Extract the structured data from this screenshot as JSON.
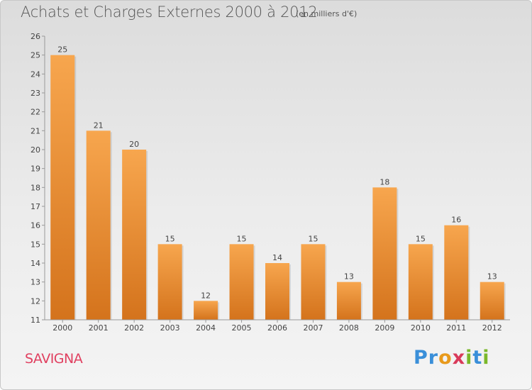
{
  "header": {
    "title": "Achats et Charges Externes 2000 à 2012",
    "subtitle": "(en milliers d'€)"
  },
  "footer": {
    "commune": "SAVIGNA",
    "logo_letters": [
      "P",
      "r",
      "o",
      "x",
      "i",
      "t",
      "i"
    ],
    "logo_colors": [
      "#3a8fd9",
      "#3a8fd9",
      "#e89a1c",
      "#d93a5a",
      "#7ab82a",
      "#3a8fd9",
      "#7ab82a"
    ]
  },
  "chart_data": {
    "type": "bar",
    "title": "Achats et Charges Externes 2000 à 2012",
    "subtitle": "(en milliers d'€)",
    "categories": [
      "2000",
      "2001",
      "2002",
      "2003",
      "2004",
      "2005",
      "2006",
      "2007",
      "2008",
      "2009",
      "2010",
      "2011",
      "2012"
    ],
    "values": [
      25,
      21,
      20,
      15,
      12,
      15,
      14,
      15,
      13,
      18,
      15,
      16,
      13
    ],
    "ylim": [
      11,
      26
    ],
    "yticks": [
      11,
      12,
      13,
      14,
      15,
      16,
      17,
      18,
      19,
      20,
      21,
      22,
      23,
      24,
      25,
      26
    ],
    "grid": false,
    "bar_color": "#f39a40",
    "bar_color_dark": "#d4731c"
  }
}
